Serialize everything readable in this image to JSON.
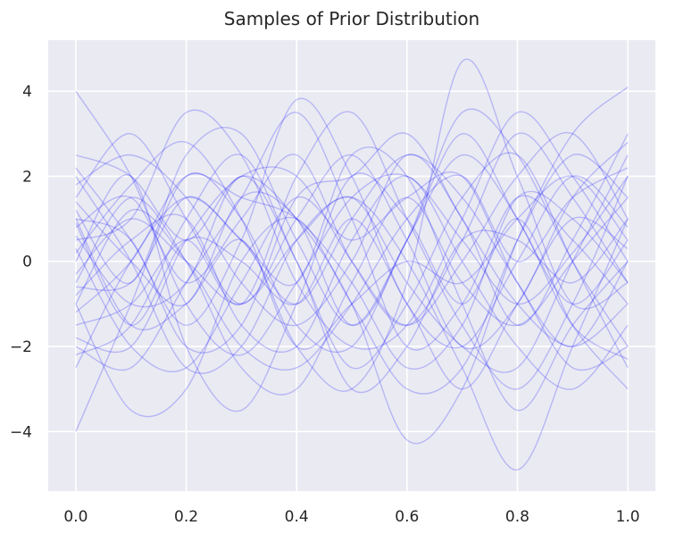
{
  "chart_data": {
    "type": "line",
    "title": "Samples of Prior Distribution",
    "xlabel": "",
    "ylabel": "",
    "xlim": [
      -0.05,
      1.05
    ],
    "ylim": [
      -5.4,
      5.2
    ],
    "xticks": [
      0.0,
      0.2,
      0.4,
      0.6,
      0.8,
      1.0
    ],
    "xtick_labels": [
      "0.0",
      "0.2",
      "0.4",
      "0.6",
      "0.8",
      "1.0"
    ],
    "yticks": [
      -4,
      -2,
      0,
      2,
      4
    ],
    "ytick_labels": [
      "−4",
      "−2",
      "0",
      "2",
      "4"
    ],
    "grid": true,
    "legend": "none",
    "line_color": "#0000ff",
    "line_alpha": 0.22,
    "background": "#eaeaf2",
    "x": [
      0.0,
      0.1,
      0.2,
      0.3,
      0.4,
      0.5,
      0.6,
      0.7,
      0.8,
      0.9,
      1.0
    ],
    "series": [
      {
        "values": [
          4.0,
          2.0,
          -1.0,
          -2.2,
          -0.5,
          1.5,
          2.0,
          0.5,
          -1.0,
          0.2,
          2.0
        ]
      },
      {
        "values": [
          -4.0,
          -1.0,
          2.0,
          1.0,
          -1.5,
          -2.0,
          0.5,
          2.5,
          1.0,
          -1.5,
          -2.3
        ]
      },
      {
        "values": [
          1.5,
          3.0,
          1.0,
          -1.0,
          1.0,
          2.5,
          0.5,
          -2.0,
          -1.0,
          1.5,
          2.8
        ]
      },
      {
        "values": [
          -2.0,
          -2.5,
          -0.5,
          1.5,
          3.5,
          1.0,
          -2.0,
          -1.0,
          1.5,
          0.5,
          -1.0
        ]
      },
      {
        "values": [
          0.5,
          1.0,
          3.5,
          2.5,
          -0.5,
          -2.0,
          -1.5,
          1.0,
          3.5,
          2.0,
          0.0
        ]
      },
      {
        "values": [
          2.0,
          0.0,
          -2.5,
          -2.0,
          0.5,
          1.5,
          0.0,
          -2.5,
          -4.9,
          -2.0,
          1.0
        ]
      },
      {
        "values": [
          -1.0,
          -3.5,
          -3.0,
          0.0,
          1.0,
          -1.0,
          -3.0,
          -2.5,
          0.5,
          2.5,
          1.5
        ]
      },
      {
        "values": [
          1.0,
          -1.5,
          -1.0,
          0.5,
          -2.0,
          -3.0,
          -0.5,
          4.7,
          2.0,
          -1.0,
          -0.5
        ]
      },
      {
        "values": [
          -0.5,
          1.5,
          0.0,
          -2.5,
          -3.0,
          -0.5,
          1.5,
          -0.5,
          -1.5,
          0.0,
          1.5
        ]
      },
      {
        "values": [
          2.5,
          2.0,
          0.5,
          2.0,
          1.0,
          -1.0,
          -4.2,
          -3.0,
          0.5,
          3.0,
          4.1
        ]
      },
      {
        "values": [
          -2.5,
          0.0,
          1.5,
          0.5,
          -1.0,
          1.0,
          2.5,
          1.5,
          -0.5,
          -2.5,
          -2.0
        ]
      },
      {
        "values": [
          0.0,
          2.0,
          -2.0,
          -3.5,
          -1.0,
          2.0,
          1.0,
          -1.0,
          1.0,
          -1.5,
          -3.0
        ]
      },
      {
        "values": [
          1.2,
          -0.5,
          2.5,
          3.0,
          0.5,
          -1.5,
          0.5,
          3.0,
          1.0,
          -1.0,
          0.5
        ]
      },
      {
        "values": [
          -1.5,
          -1.0,
          0.5,
          -1.0,
          2.0,
          3.5,
          1.0,
          -1.5,
          -3.0,
          -1.0,
          2.0
        ]
      },
      {
        "values": [
          0.8,
          1.5,
          -0.5,
          1.0,
          2.5,
          0.0,
          -1.5,
          0.5,
          3.0,
          1.5,
          -0.5
        ]
      },
      {
        "values": [
          -0.8,
          0.5,
          1.0,
          -1.5,
          -2.0,
          0.5,
          2.0,
          0.0,
          -2.0,
          -3.0,
          -1.5
        ]
      },
      {
        "values": [
          2.2,
          0.5,
          -1.5,
          0.5,
          3.8,
          2.0,
          -1.0,
          -2.0,
          0.0,
          2.0,
          0.8
        ]
      },
      {
        "values": [
          -2.2,
          -1.5,
          1.0,
          2.5,
          0.0,
          -2.5,
          -1.0,
          1.5,
          2.5,
          0.0,
          -2.5
        ]
      },
      {
        "values": [
          0.3,
          -2.0,
          -2.5,
          -0.5,
          1.5,
          0.5,
          1.5,
          2.0,
          -0.5,
          -2.0,
          0.0
        ]
      },
      {
        "values": [
          1.8,
          2.5,
          1.5,
          -0.5,
          -1.5,
          0.0,
          2.5,
          1.0,
          -1.5,
          0.5,
          3.0
        ]
      },
      {
        "values": [
          -1.2,
          0.0,
          2.0,
          1.5,
          1.0,
          -0.5,
          -2.5,
          -1.5,
          1.5,
          1.0,
          -0.5
        ]
      },
      {
        "values": [
          0.6,
          -1.0,
          -0.5,
          2.0,
          0.0,
          -3.0,
          -2.0,
          0.5,
          0.5,
          -0.5,
          1.0
        ]
      },
      {
        "values": [
          -0.3,
          1.0,
          0.0,
          -1.0,
          0.5,
          1.5,
          -0.5,
          -2.0,
          -2.5,
          0.0,
          2.5
        ]
      },
      {
        "values": [
          1.0,
          0.5,
          -2.0,
          -1.5,
          1.5,
          2.0,
          3.0,
          1.0,
          -1.0,
          -2.0,
          -1.0
        ]
      },
      {
        "values": [
          -1.8,
          -2.0,
          0.5,
          2.0,
          2.0,
          0.0,
          -1.5,
          0.0,
          2.0,
          3.0,
          1.0
        ]
      },
      {
        "values": [
          0.2,
          1.8,
          2.8,
          1.0,
          -2.0,
          -1.0,
          0.0,
          -0.5,
          1.0,
          2.0,
          0.5
        ]
      },
      {
        "values": [
          -0.6,
          -0.5,
          1.5,
          0.5,
          -0.5,
          2.5,
          2.0,
          -1.0,
          -3.5,
          -1.5,
          0.0
        ]
      },
      {
        "values": [
          1.4,
          0.0,
          -1.0,
          1.5,
          1.0,
          -1.5,
          0.5,
          3.5,
          2.5,
          0.0,
          -2.0
        ]
      },
      {
        "values": [
          -1.0,
          1.2,
          0.0,
          -2.0,
          -2.5,
          -1.0,
          1.0,
          2.0,
          0.0,
          1.5,
          2.2
        ]
      },
      {
        "values": [
          0.9,
          -1.5,
          0.5,
          0.0,
          -1.0,
          1.0,
          -1.0,
          -3.0,
          -1.0,
          1.0,
          0.3
        ]
      }
    ]
  }
}
